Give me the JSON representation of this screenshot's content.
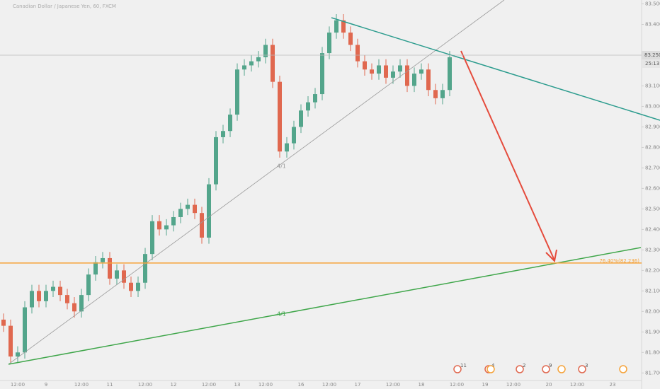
{
  "chart_data": {
    "type": "candlestick",
    "title": "Canadian Dollar / Japanese Yen, 60, FXCM",
    "categories": [
      null,
      null,
      "12:00",
      null,
      null,
      null,
      "9",
      null,
      null,
      null,
      null,
      "12:00",
      null,
      null,
      null,
      "11",
      null,
      null,
      null,
      null,
      "12:00",
      null,
      null,
      null,
      "12",
      null,
      null,
      null,
      null,
      "12:00",
      null,
      null,
      null,
      "13",
      null,
      null,
      null,
      "12:00",
      null,
      null,
      null,
      null,
      "16",
      null,
      null,
      null,
      "12:00",
      null,
      null,
      null,
      "17",
      null,
      null,
      null,
      null,
      "12:00",
      null,
      null,
      null,
      "18",
      null,
      null,
      null,
      null,
      "12:00",
      null,
      null,
      null,
      "19",
      null,
      null,
      null,
      "12:00",
      null,
      null,
      null,
      null,
      "20",
      null,
      null,
      null,
      "12:00",
      null,
      null,
      null,
      null,
      "23",
      null,
      null,
      null
    ],
    "open": [
      81.96,
      81.93,
      81.78,
      81.8,
      82.02,
      82.1,
      82.05,
      82.1,
      82.12,
      82.08,
      82.04,
      82.0,
      82.08,
      82.18,
      82.24,
      82.26,
      82.16,
      82.2,
      82.14,
      82.1,
      82.14,
      82.28,
      82.44,
      82.4,
      82.42,
      82.46,
      82.5,
      82.52,
      82.48,
      82.36,
      82.62,
      82.85,
      82.88,
      82.96,
      83.18,
      83.2,
      83.22,
      83.24,
      83.3,
      83.12,
      82.78,
      82.82,
      82.9,
      82.98,
      83.02,
      83.06,
      83.26,
      83.36,
      83.42,
      83.36,
      83.3,
      83.22,
      83.18,
      83.16,
      83.2,
      83.14,
      83.17,
      83.2,
      83.1,
      83.16,
      83.18,
      83.08,
      83.04,
      83.08,
      null,
      null,
      null,
      null,
      null,
      null,
      null,
      null,
      null,
      null,
      null,
      null,
      null,
      null,
      null,
      null,
      null,
      null,
      null,
      null,
      null,
      null,
      null,
      null,
      null,
      null
    ],
    "high": [
      81.99,
      81.96,
      81.83,
      82.05,
      82.13,
      82.13,
      82.13,
      82.15,
      82.15,
      82.11,
      82.07,
      82.11,
      82.21,
      82.27,
      82.29,
      82.29,
      82.23,
      82.23,
      82.17,
      82.17,
      82.31,
      82.47,
      82.47,
      82.45,
      82.49,
      82.53,
      82.55,
      82.55,
      82.51,
      82.65,
      82.88,
      82.91,
      82.99,
      83.21,
      83.23,
      83.25,
      83.27,
      83.33,
      83.33,
      83.15,
      82.85,
      82.93,
      83.01,
      83.05,
      83.09,
      83.29,
      83.39,
      83.45,
      83.45,
      83.39,
      83.33,
      83.25,
      83.21,
      83.23,
      83.23,
      83.2,
      83.23,
      83.23,
      83.19,
      83.21,
      83.21,
      83.11,
      83.11,
      83.27,
      null,
      null,
      null,
      null,
      null,
      null,
      null,
      null,
      null,
      null,
      null,
      null,
      null,
      null,
      null,
      null,
      null,
      null,
      null,
      null,
      null,
      null,
      null,
      null,
      null,
      null
    ],
    "low": [
      81.9,
      81.75,
      81.75,
      81.77,
      81.99,
      82.02,
      82.02,
      82.07,
      82.05,
      82.01,
      81.97,
      81.97,
      82.05,
      82.15,
      82.21,
      82.13,
      82.13,
      82.11,
      82.07,
      82.07,
      82.11,
      82.25,
      82.37,
      82.37,
      82.39,
      82.43,
      82.47,
      82.45,
      82.33,
      82.33,
      82.59,
      82.82,
      82.85,
      82.93,
      83.15,
      83.17,
      83.19,
      83.21,
      83.09,
      82.75,
      82.75,
      82.79,
      82.87,
      82.95,
      82.99,
      83.03,
      83.23,
      83.33,
      83.33,
      83.27,
      83.19,
      83.15,
      83.13,
      83.13,
      83.11,
      83.11,
      83.14,
      83.07,
      83.07,
      83.13,
      83.05,
      83.01,
      83.01,
      83.05,
      null,
      null,
      null,
      null,
      null,
      null,
      null,
      null,
      null,
      null,
      null,
      null,
      null,
      null,
      null,
      null,
      null,
      null,
      null,
      null,
      null,
      null,
      null,
      null,
      null,
      null
    ],
    "close": [
      81.93,
      81.78,
      81.8,
      82.02,
      82.1,
      82.05,
      82.1,
      82.12,
      82.08,
      82.04,
      82.0,
      82.08,
      82.18,
      82.24,
      82.26,
      82.16,
      82.2,
      82.14,
      82.1,
      82.14,
      82.28,
      82.44,
      82.4,
      82.42,
      82.46,
      82.5,
      82.52,
      82.48,
      82.36,
      82.62,
      82.85,
      82.88,
      82.96,
      83.18,
      83.2,
      83.22,
      83.24,
      83.3,
      83.12,
      82.78,
      82.82,
      82.9,
      82.98,
      83.02,
      83.06,
      83.26,
      83.36,
      83.42,
      83.36,
      83.3,
      83.22,
      83.18,
      83.16,
      83.2,
      83.14,
      83.17,
      83.2,
      83.1,
      83.16,
      83.18,
      83.08,
      83.04,
      83.08,
      83.24,
      null,
      null,
      null,
      null,
      null,
      null,
      null,
      null,
      null,
      null,
      null,
      null,
      null,
      null,
      null,
      null,
      null,
      null,
      null,
      null,
      null,
      null,
      null,
      null,
      null,
      null
    ],
    "up_color": "#53a58b",
    "down_color": "#e0684f",
    "ylim": [
      81.663,
      83.519
    ],
    "yticks": [
      {
        "value": 81.7,
        "label": "81.700"
      },
      {
        "value": 81.8,
        "label": "81.800"
      },
      {
        "value": 81.9,
        "label": "81.900"
      },
      {
        "value": 82.0,
        "label": "82.000"
      },
      {
        "value": 82.1,
        "label": "82.100"
      },
      {
        "value": 82.2,
        "label": "82.200"
      },
      {
        "value": 82.3,
        "label": "82.300"
      },
      {
        "value": 82.4,
        "label": "82.400"
      },
      {
        "value": 82.5,
        "label": "82.500"
      },
      {
        "value": 82.6,
        "label": "82.600"
      },
      {
        "value": 82.7,
        "label": "82.700"
      },
      {
        "value": 82.8,
        "label": "82.800"
      },
      {
        "value": 82.9,
        "label": "82.900"
      },
      {
        "value": 83.0,
        "label": "83.000"
      },
      {
        "value": 83.1,
        "label": "83.100"
      },
      {
        "value": 83.4,
        "label": "83.400"
      },
      {
        "value": 83.5,
        "label": "83.500"
      }
    ],
    "current_price": {
      "value": 83.25,
      "label": "83.250"
    },
    "countdown": "25:13",
    "fib_level": {
      "value": 82.236,
      "label": "76.40%(82.236)",
      "color": "#f5a33a"
    },
    "trend_labels": [
      "4/1",
      "4/1"
    ],
    "events": [
      "11",
      "4",
      "2",
      "9",
      "3"
    ]
  }
}
